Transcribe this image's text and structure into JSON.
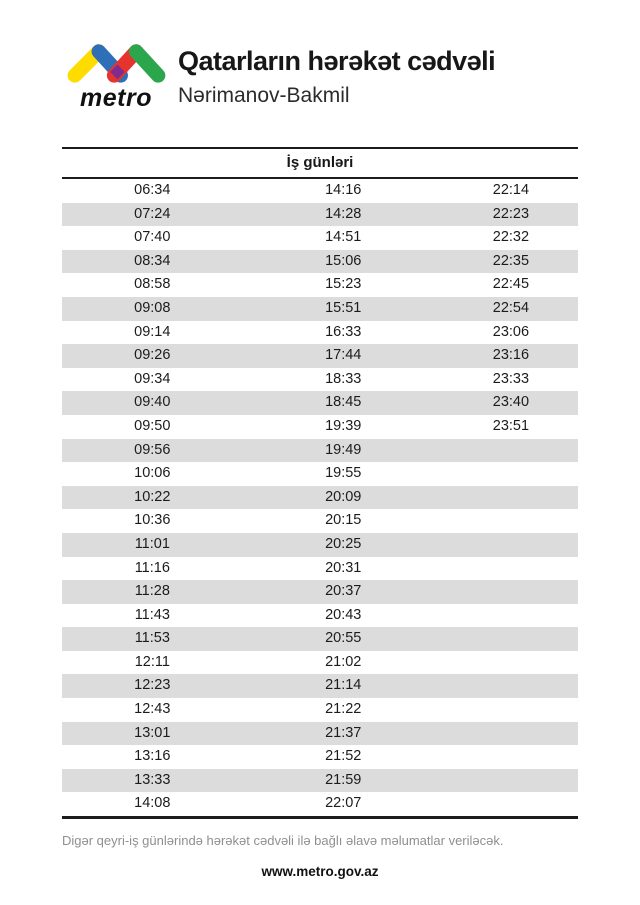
{
  "header": {
    "brand": "metro",
    "title": "Qatarların hərəkət cədvəli",
    "subtitle": "Nərimanov-Bakmil",
    "logo_colors": {
      "yellow": "#FFDC00",
      "blue": "#2F6FB7",
      "red": "#E5332D",
      "green": "#2CA64D",
      "purple": "#7E2C8F"
    }
  },
  "table": {
    "header": "İş günləri",
    "zebra_color": "#dcdcdc",
    "rows": [
      [
        "06:34",
        "14:16",
        "22:14"
      ],
      [
        "07:24",
        "14:28",
        "22:23"
      ],
      [
        "07:40",
        "14:51",
        "22:32"
      ],
      [
        "08:34",
        "15:06",
        "22:35"
      ],
      [
        "08:58",
        "15:23",
        "22:45"
      ],
      [
        "09:08",
        "15:51",
        "22:54"
      ],
      [
        "09:14",
        "16:33",
        "23:06"
      ],
      [
        "09:26",
        "17:44",
        "23:16"
      ],
      [
        "09:34",
        "18:33",
        "23:33"
      ],
      [
        "09:40",
        "18:45",
        "23:40"
      ],
      [
        "09:50",
        "19:39",
        "23:51"
      ],
      [
        "09:56",
        "19:49",
        ""
      ],
      [
        "10:06",
        "19:55",
        ""
      ],
      [
        "10:22",
        "20:09",
        ""
      ],
      [
        "10:36",
        "20:15",
        ""
      ],
      [
        "11:01",
        "20:25",
        ""
      ],
      [
        "11:16",
        "20:31",
        ""
      ],
      [
        "11:28",
        "20:37",
        ""
      ],
      [
        "11:43",
        "20:43",
        ""
      ],
      [
        "11:53",
        "20:55",
        ""
      ],
      [
        "12:11",
        "21:02",
        ""
      ],
      [
        "12:23",
        "21:14",
        ""
      ],
      [
        "12:43",
        "21:22",
        ""
      ],
      [
        "13:01",
        "21:37",
        ""
      ],
      [
        "13:16",
        "21:52",
        ""
      ],
      [
        "13:33",
        "21:59",
        ""
      ],
      [
        "14:08",
        "22:07",
        ""
      ]
    ]
  },
  "footer": {
    "note": "Digər qeyri-iş günlərində hərəkət cədvəli ilə bağlı əlavə məlumatlar veriləcək.",
    "website": "www.metro.gov.az"
  }
}
